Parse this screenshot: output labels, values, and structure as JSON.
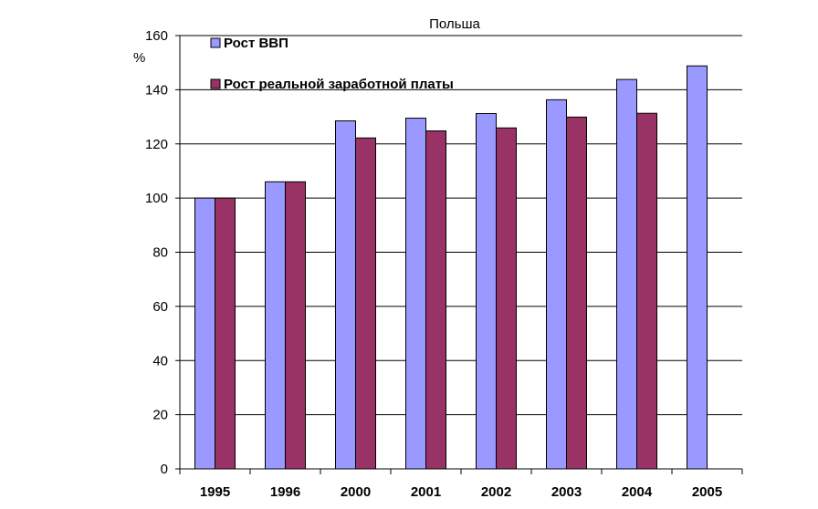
{
  "chart_data": {
    "type": "bar",
    "title": "Польша",
    "ylabel": "%",
    "xlabel": "",
    "ylim": [
      0,
      160
    ],
    "yticks": [
      0,
      20,
      40,
      60,
      80,
      100,
      120,
      140,
      160
    ],
    "grid": true,
    "legend_position": "top-left",
    "categories": [
      "1995",
      "1996",
      "2000",
      "2001",
      "2002",
      "2003",
      "2004",
      "2005"
    ],
    "series": [
      {
        "name": "Рост ВВП",
        "color": "#9999ff",
        "values": [
          100,
          106,
          128.5,
          129.5,
          131.2,
          136.3,
          143.8,
          148.8
        ]
      },
      {
        "name": "Рост реальной заработной платы",
        "color": "#993366",
        "values": [
          100,
          106,
          122.2,
          124.8,
          125.9,
          129.9,
          131.3,
          null
        ]
      }
    ]
  }
}
